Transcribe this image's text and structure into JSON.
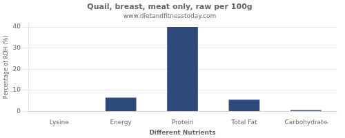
{
  "chart_data": {
    "type": "bar",
    "title": "Quail, breast, meat only, raw per 100g",
    "subtitle": "www.dietandfitnesstoday.com",
    "xlabel": "Different Nutrients",
    "ylabel": "Percentage of RDH (%)",
    "categories": [
      "Lysine",
      "Energy",
      "Protein",
      "Total Fat",
      "Carbohydrate"
    ],
    "values": [
      0,
      6.5,
      40,
      5.5,
      0.5
    ],
    "color": "#2e4a7a",
    "ylim": [
      0,
      42
    ],
    "yticks": [
      0,
      10,
      20,
      30,
      40
    ],
    "grid": true
  }
}
